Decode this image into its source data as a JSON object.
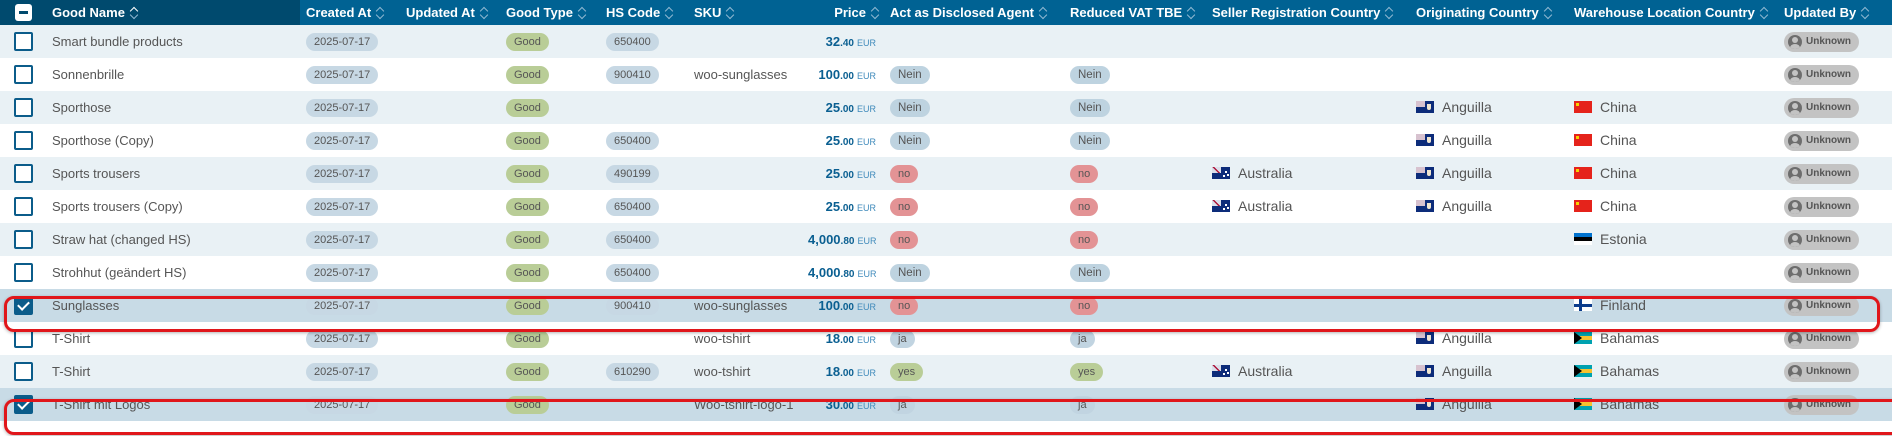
{
  "header": {
    "columns": [
      "Good Name",
      "Created At",
      "Updated At",
      "Good Type",
      "HS Code",
      "SKU",
      "Price",
      "Act as Disclosed Agent",
      "Reduced VAT TBE",
      "Seller Registration Country",
      "Originating Country",
      "Warehouse Location Country",
      "Updated By"
    ]
  },
  "currency": "EUR",
  "rows": [
    {
      "name": "Smart bundle products",
      "created": "2025-07-17",
      "updated": "",
      "type": "Good",
      "hs": "650400",
      "sku": "",
      "price_int": "32",
      "price_dec": ".40",
      "agent": "",
      "vat": "",
      "seller": "",
      "origin": "",
      "warehouse": "",
      "updated_by": "Unknown",
      "checked": false
    },
    {
      "name": "Sonnenbrille",
      "created": "2025-07-17",
      "updated": "",
      "type": "Good",
      "hs": "900410",
      "sku": "woo-sunglasses",
      "price_int": "100",
      "price_dec": ".00",
      "agent": "Nein",
      "vat": "Nein",
      "seller": "",
      "origin": "",
      "warehouse": "",
      "updated_by": "Unknown",
      "checked": false
    },
    {
      "name": "Sporthose",
      "created": "2025-07-17",
      "updated": "",
      "type": "Good",
      "hs": "",
      "sku": "",
      "price_int": "25",
      "price_dec": ".00",
      "agent": "Nein",
      "vat": "Nein",
      "seller": "",
      "origin": "Anguilla",
      "warehouse": "China",
      "updated_by": "Unknown",
      "checked": false
    },
    {
      "name": "Sporthose (Copy)",
      "created": "2025-07-17",
      "updated": "",
      "type": "Good",
      "hs": "650400",
      "sku": "",
      "price_int": "25",
      "price_dec": ".00",
      "agent": "Nein",
      "vat": "Nein",
      "seller": "",
      "origin": "Anguilla",
      "warehouse": "China",
      "updated_by": "Unknown",
      "checked": false
    },
    {
      "name": "Sports trousers",
      "created": "2025-07-17",
      "updated": "",
      "type": "Good",
      "hs": "490199",
      "sku": "",
      "price_int": "25",
      "price_dec": ".00",
      "agent": "no",
      "vat": "no",
      "seller": "Australia",
      "origin": "Anguilla",
      "warehouse": "China",
      "updated_by": "Unknown",
      "checked": false
    },
    {
      "name": "Sports trousers (Copy)",
      "created": "2025-07-17",
      "updated": "",
      "type": "Good",
      "hs": "650400",
      "sku": "",
      "price_int": "25",
      "price_dec": ".00",
      "agent": "no",
      "vat": "no",
      "seller": "Australia",
      "origin": "Anguilla",
      "warehouse": "China",
      "updated_by": "Unknown",
      "checked": false
    },
    {
      "name": "Straw hat (changed HS)",
      "created": "2025-07-17",
      "updated": "",
      "type": "Good",
      "hs": "650400",
      "sku": "",
      "price_int": "4,000",
      "price_dec": ".80",
      "agent": "no",
      "vat": "no",
      "seller": "",
      "origin": "",
      "warehouse": "Estonia",
      "updated_by": "Unknown",
      "checked": false
    },
    {
      "name": "Strohhut (geändert HS)",
      "created": "2025-07-17",
      "updated": "",
      "type": "Good",
      "hs": "650400",
      "sku": "",
      "price_int": "4,000",
      "price_dec": ".80",
      "agent": "Nein",
      "vat": "Nein",
      "seller": "",
      "origin": "",
      "warehouse": "",
      "updated_by": "Unknown",
      "checked": false
    },
    {
      "name": "Sunglasses",
      "created": "2025-07-17",
      "updated": "",
      "type": "Good",
      "hs": "900410",
      "sku": "woo-sunglasses",
      "price_int": "100",
      "price_dec": ".00",
      "agent": "no",
      "vat": "no",
      "seller": "",
      "origin": "",
      "warehouse": "Finland",
      "updated_by": "Unknown",
      "checked": true
    },
    {
      "name": "T-Shirt",
      "created": "2025-07-17",
      "updated": "",
      "type": "Good",
      "hs": "",
      "sku": "woo-tshirt",
      "price_int": "18",
      "price_dec": ".00",
      "agent": "ja",
      "vat": "ja",
      "seller": "",
      "origin": "Anguilla",
      "warehouse": "Bahamas",
      "updated_by": "Unknown",
      "checked": false
    },
    {
      "name": "T-Shirt",
      "created": "2025-07-17",
      "updated": "",
      "type": "Good",
      "hs": "610290",
      "sku": "woo-tshirt",
      "price_int": "18",
      "price_dec": ".00",
      "agent": "yes",
      "vat": "yes",
      "seller": "Australia",
      "origin": "Anguilla",
      "warehouse": "Bahamas",
      "updated_by": "Unknown",
      "checked": false
    },
    {
      "name": "T-Shirt mit Logos",
      "created": "2025-07-17",
      "updated": "",
      "type": "Good",
      "hs": "",
      "sku": "Woo-tshirt-logo-1",
      "price_int": "30",
      "price_dec": ".00",
      "agent": "ja",
      "vat": "ja",
      "seller": "",
      "origin": "Anguilla",
      "warehouse": "Bahamas",
      "updated_by": "Unknown",
      "checked": true
    }
  ],
  "colors": {
    "header": "#006293",
    "header_active": "#004a6e",
    "highlight": "#e0161b",
    "selected_row": "#c8dbe6"
  },
  "icons": {
    "flag_map": {
      "Australia": "f-au",
      "Anguilla": "f-ai",
      "China": "f-cn",
      "Estonia": "f-ee",
      "Finland": "f-fi",
      "Bahamas": "f-bs"
    },
    "user": "user-icon",
    "sort": "sort-icon"
  }
}
